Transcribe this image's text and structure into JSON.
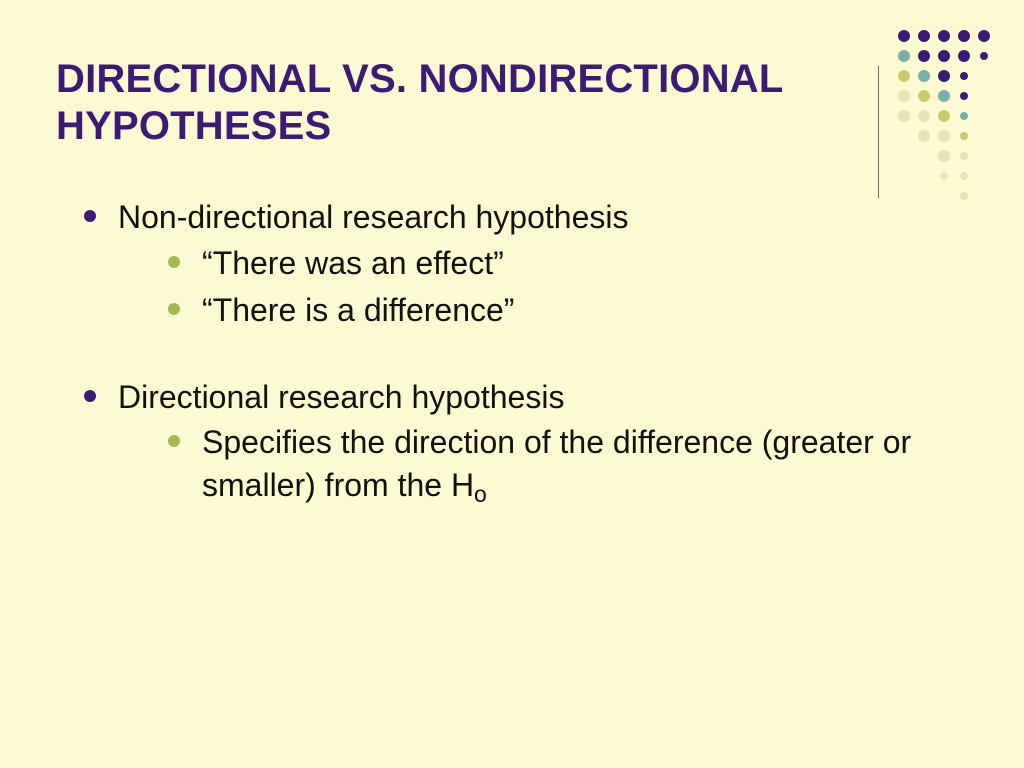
{
  "slide": {
    "title": "DIRECTIONAL VS. NONDIRECTIONAL HYPOTHESES",
    "bullets": [
      {
        "text": "Non-directional research hypothesis",
        "children": [
          {
            "text": "“There was an effect”"
          },
          {
            "text": "“There is a difference”"
          }
        ]
      },
      {
        "text": "Directional research hypothesis",
        "children": [
          {
            "text_prefix": "Specifies the direction of the difference (greater or smaller) from the H",
            "subscript": "o"
          }
        ]
      }
    ]
  },
  "theme": {
    "background": "#fcfad0",
    "title_color": "#3e1a78",
    "body_text_color": "#111111",
    "bullet_level1_color": "#3e1a78",
    "bullet_level2_color": "#a7b84f",
    "divider_color": "#6a6a6a",
    "title_fontsize": 40,
    "body_fontsize": 32,
    "font_family": "Arial"
  },
  "decor": {
    "dot_grid": {
      "cols": 5,
      "rows": 9,
      "cell_size": 20,
      "colors": {
        "purple": "#3e1a78",
        "teal": "#7bb0a8",
        "olive": "#c9c96b",
        "cream": "#e8e3b0"
      },
      "cells": [
        {
          "r": 0,
          "c": 0,
          "color": "purple",
          "size": 12
        },
        {
          "r": 0,
          "c": 1,
          "color": "purple",
          "size": 12
        },
        {
          "r": 0,
          "c": 2,
          "color": "purple",
          "size": 12
        },
        {
          "r": 0,
          "c": 3,
          "color": "purple",
          "size": 12
        },
        {
          "r": 0,
          "c": 4,
          "color": "purple",
          "size": 12
        },
        {
          "r": 1,
          "c": 0,
          "color": "teal",
          "size": 12
        },
        {
          "r": 1,
          "c": 1,
          "color": "purple",
          "size": 12
        },
        {
          "r": 1,
          "c": 2,
          "color": "purple",
          "size": 12
        },
        {
          "r": 1,
          "c": 3,
          "color": "purple",
          "size": 12
        },
        {
          "r": 1,
          "c": 4,
          "color": "purple",
          "size": 8
        },
        {
          "r": 2,
          "c": 0,
          "color": "olive",
          "size": 12
        },
        {
          "r": 2,
          "c": 1,
          "color": "teal",
          "size": 12
        },
        {
          "r": 2,
          "c": 2,
          "color": "purple",
          "size": 12
        },
        {
          "r": 2,
          "c": 3,
          "color": "purple",
          "size": 8
        },
        {
          "r": 3,
          "c": 0,
          "color": "cream",
          "size": 12
        },
        {
          "r": 3,
          "c": 1,
          "color": "olive",
          "size": 12
        },
        {
          "r": 3,
          "c": 2,
          "color": "teal",
          "size": 12
        },
        {
          "r": 3,
          "c": 3,
          "color": "purple",
          "size": 8
        },
        {
          "r": 4,
          "c": 0,
          "color": "cream",
          "size": 12
        },
        {
          "r": 4,
          "c": 1,
          "color": "cream",
          "size": 12
        },
        {
          "r": 4,
          "c": 2,
          "color": "olive",
          "size": 12
        },
        {
          "r": 4,
          "c": 3,
          "color": "teal",
          "size": 8
        },
        {
          "r": 5,
          "c": 1,
          "color": "cream",
          "size": 12
        },
        {
          "r": 5,
          "c": 2,
          "color": "cream",
          "size": 12
        },
        {
          "r": 5,
          "c": 3,
          "color": "olive",
          "size": 8
        },
        {
          "r": 6,
          "c": 2,
          "color": "cream",
          "size": 12
        },
        {
          "r": 6,
          "c": 3,
          "color": "cream",
          "size": 8
        },
        {
          "r": 7,
          "c": 2,
          "color": "cream",
          "size": 8
        },
        {
          "r": 7,
          "c": 3,
          "color": "cream",
          "size": 8
        },
        {
          "r": 8,
          "c": 3,
          "color": "cream",
          "size": 8
        }
      ]
    }
  }
}
